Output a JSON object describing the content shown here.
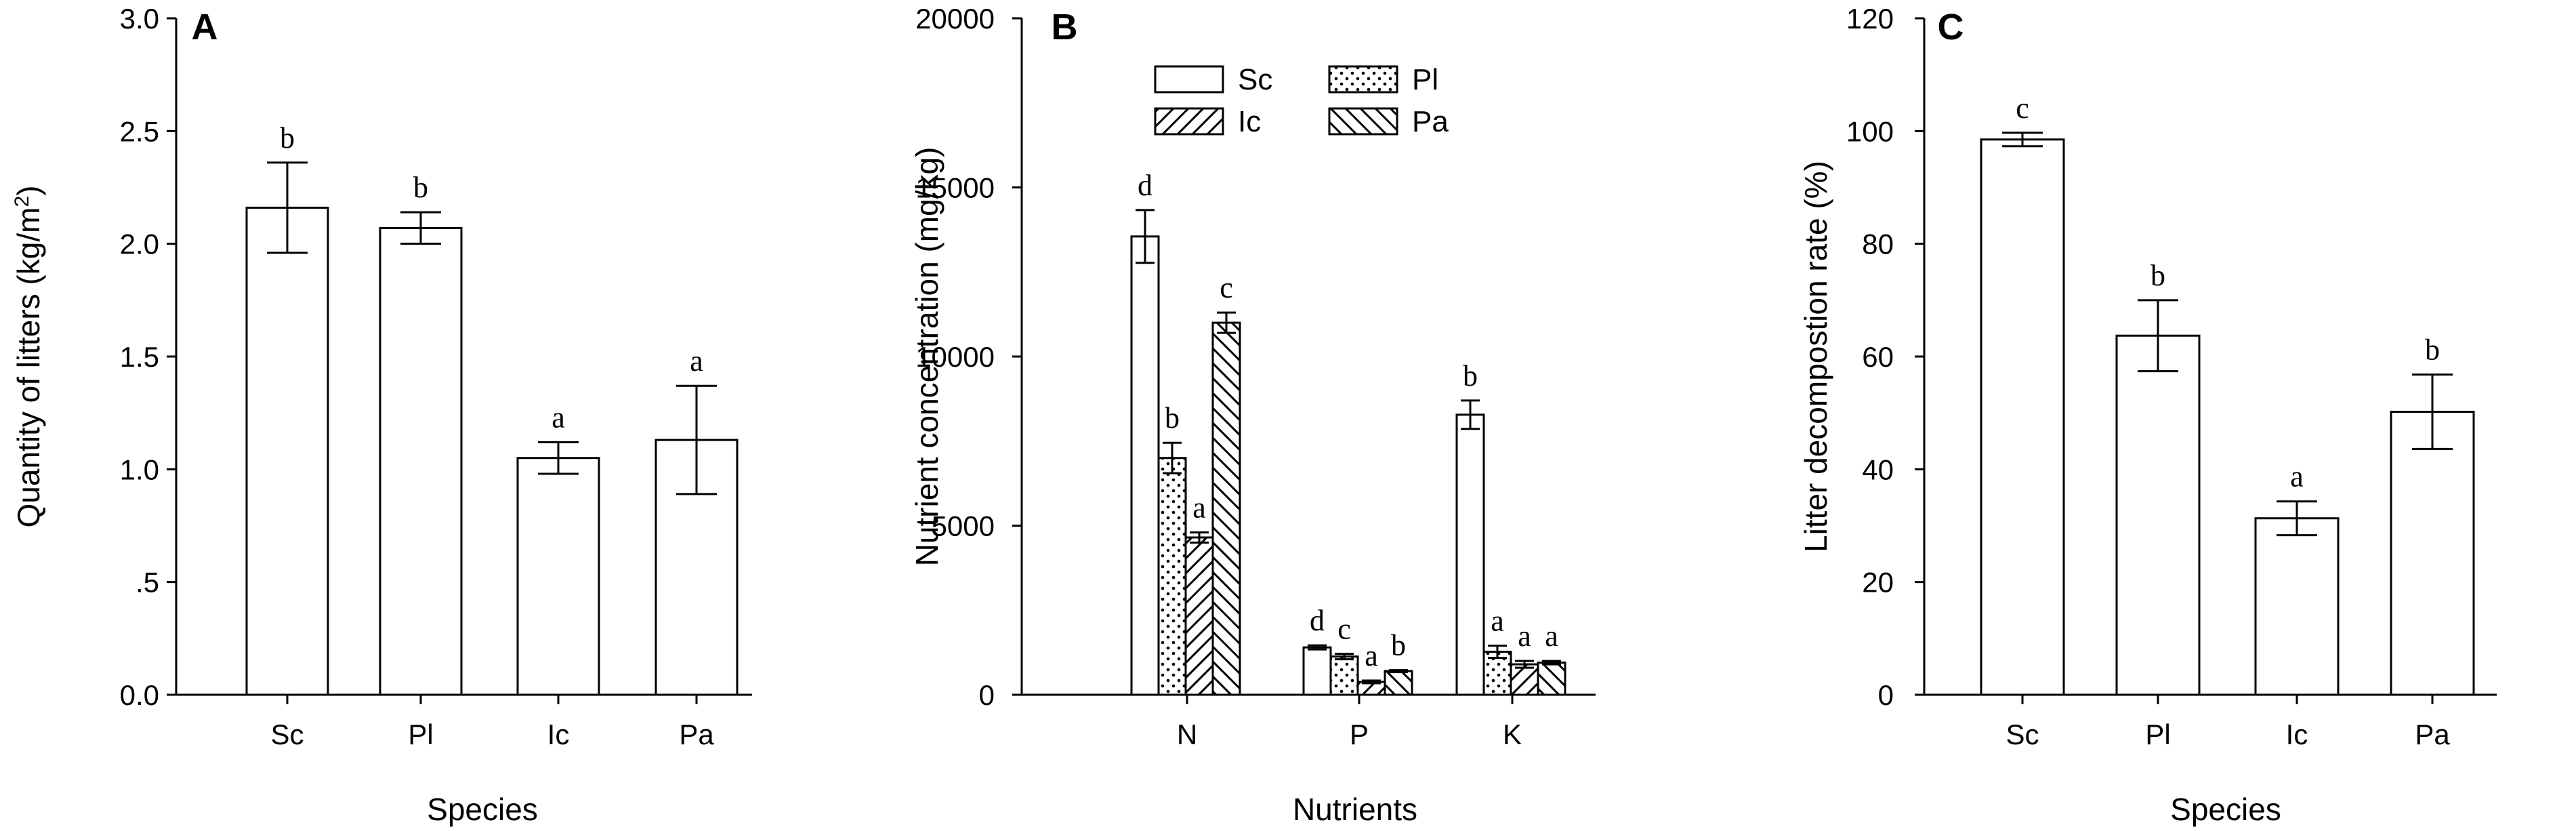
{
  "chart_data": [
    {
      "type": "bar",
      "panel_label": "A",
      "categories": [
        "Sc",
        "Pl",
        "Ic",
        "Pa"
      ],
      "values": [
        2.16,
        2.07,
        1.05,
        1.13
      ],
      "errors": [
        0.2,
        0.07,
        0.07,
        0.24
      ],
      "letters": [
        "b",
        "b",
        "a",
        "a"
      ],
      "ylabel": "Quantity of litters (kg/m2)",
      "ylabel_main": "Quantity of litters (kg/m",
      "ylabel_sup": "2",
      "ylabel_end": ")",
      "xlabel": "Species",
      "ylim": [
        0,
        3.0
      ],
      "yticks": [
        0,
        0.5,
        1.0,
        1.5,
        2.0,
        2.5,
        3.0
      ],
      "ytick_labels": [
        "0.0",
        ".5",
        "1.0",
        "1.5",
        "2.0",
        "2.5",
        "3.0"
      ],
      "grid": false
    },
    {
      "type": "bar",
      "panel_label": "B",
      "categories": [
        "N",
        "P",
        "K"
      ],
      "series": [
        {
          "name": "Sc",
          "pattern": "open",
          "values": [
            13550,
            1400,
            8280
          ],
          "errors": [
            780,
            60,
            420
          ],
          "letters": [
            "d",
            "d",
            "b"
          ]
        },
        {
          "name": "Pl",
          "pattern": "dots",
          "values": [
            7000,
            1130,
            1270
          ],
          "errors": [
            450,
            80,
            180
          ],
          "letters": [
            "b",
            "c",
            "a"
          ]
        },
        {
          "name": "Ic",
          "pattern": "forward-hatch",
          "values": [
            4650,
            380,
            900
          ],
          "errors": [
            150,
            40,
            100
          ],
          "letters": [
            "a",
            "a",
            "a"
          ]
        },
        {
          "name": "Pa",
          "pattern": "back-hatch",
          "values": [
            11000,
            700,
            950
          ],
          "errors": [
            300,
            30,
            50
          ],
          "letters": [
            "c",
            "b",
            "a"
          ]
        }
      ],
      "ylabel": "Nutrient concentration (mg/kg)",
      "xlabel": "Nutrients",
      "ylim": [
        0,
        20000
      ],
      "yticks": [
        0,
        5000,
        10000,
        15000,
        20000
      ],
      "ytick_labels": [
        "0",
        "5000",
        "10000",
        "15000",
        "20000"
      ],
      "legend": "top",
      "grid": false
    },
    {
      "type": "bar",
      "panel_label": "C",
      "categories": [
        "Sc",
        "Pl",
        "Ic",
        "Pa"
      ],
      "values": [
        98.5,
        63.7,
        31.3,
        50.2
      ],
      "errors": [
        1.2,
        6.3,
        3.0,
        6.6
      ],
      "letters": [
        "c",
        "b",
        "a",
        "b"
      ],
      "ylabel": "Litter decompostion rate (%)",
      "xlabel": "Species",
      "ylim": [
        0,
        120
      ],
      "yticks": [
        0,
        20,
        40,
        60,
        80,
        100,
        120
      ],
      "ytick_labels": [
        "0",
        "20",
        "40",
        "60",
        "80",
        "100",
        "120"
      ],
      "grid": false
    }
  ]
}
